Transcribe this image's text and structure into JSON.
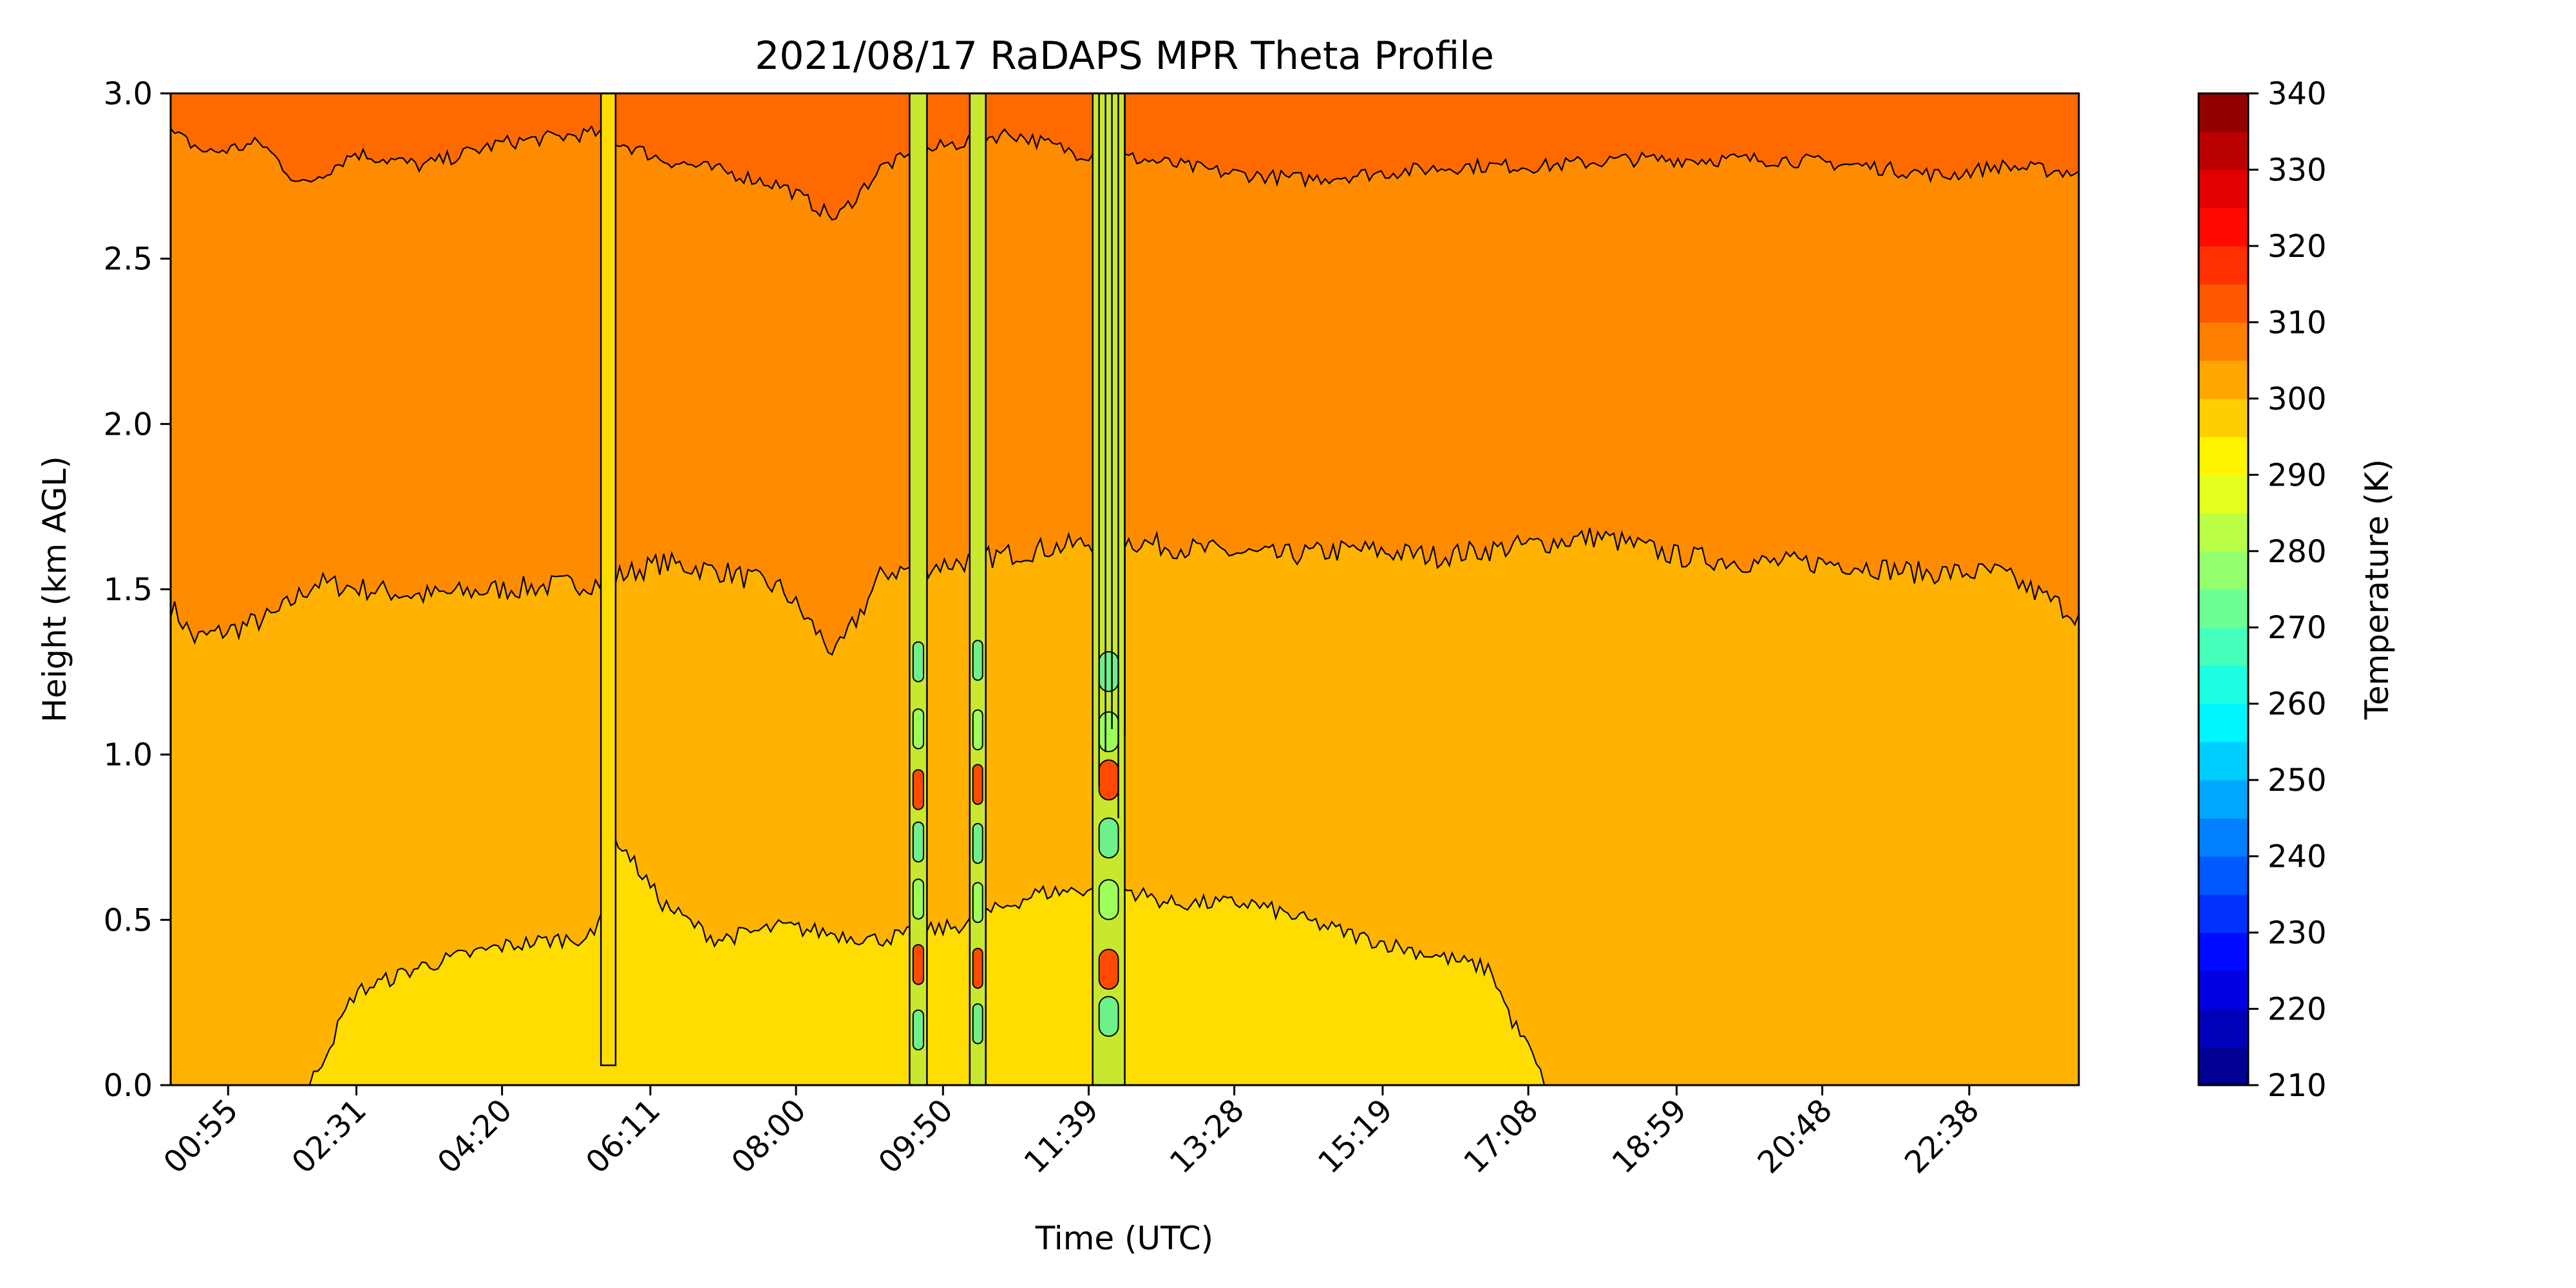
{
  "chart_data": {
    "type": "heatmap",
    "title": "2021/08/17 RaDAPS MPR Theta Profile",
    "xlabel": "Time (UTC)",
    "ylabel": "Height (km AGL)",
    "colorbar_label": "Temperature (K)",
    "colormap": "jet",
    "contour_lines": true,
    "x_range_minutes": [
      12,
      1440
    ],
    "x_ticks": [
      {
        "label": "00:55",
        "minutes": 55
      },
      {
        "label": "02:31",
        "minutes": 151
      },
      {
        "label": "04:20",
        "minutes": 260
      },
      {
        "label": "06:11",
        "minutes": 371
      },
      {
        "label": "08:00",
        "minutes": 480
      },
      {
        "label": "09:50",
        "minutes": 590
      },
      {
        "label": "11:39",
        "minutes": 699
      },
      {
        "label": "13:28",
        "minutes": 808
      },
      {
        "label": "15:19",
        "minutes": 919
      },
      {
        "label": "17:08",
        "minutes": 1028
      },
      {
        "label": "18:59",
        "minutes": 1139
      },
      {
        "label": "20:48",
        "minutes": 1248
      },
      {
        "label": "22:38",
        "minutes": 1358
      }
    ],
    "y_range": [
      0.0,
      3.0
    ],
    "y_ticks": [
      "0.0",
      "0.5",
      "1.0",
      "1.5",
      "2.0",
      "2.5",
      "3.0"
    ],
    "colorbar_range": [
      210,
      340
    ],
    "colorbar_levels": [
      210,
      215,
      220,
      225,
      230,
      235,
      240,
      245,
      250,
      255,
      260,
      265,
      270,
      275,
      280,
      285,
      290,
      295,
      300,
      305,
      310,
      315,
      320,
      325,
      330,
      335,
      340
    ],
    "colorbar_ticks": [
      "210",
      "220",
      "230",
      "240",
      "250",
      "260",
      "270",
      "280",
      "290",
      "300",
      "310",
      "320",
      "330",
      "340"
    ],
    "layers": [
      {
        "range_K": [
          295,
          300
        ],
        "color": "#ffdd00",
        "region": "surface layer, 01:50-17:30, top about 0.3-0.6 km"
      },
      {
        "range_K": [
          300,
          305
        ],
        "color": "#ffb300",
        "region": "0.3 km to about 1.5 km"
      },
      {
        "range_K": [
          305,
          310
        ],
        "color": "#ff8c00",
        "region": "1.5 km to about 2.8 km"
      },
      {
        "range_K": [
          310,
          315
        ],
        "color": "#ff6a00",
        "region": "above about 2.8 km"
      }
    ],
    "boundaries": {
      "b295_300": {
        "start_minutes": 116,
        "end_minutes": 1053,
        "points": [
          [
            116,
            0.0
          ],
          [
            150,
            0.28
          ],
          [
            200,
            0.36
          ],
          [
            260,
            0.42
          ],
          [
            300,
            0.44
          ],
          [
            330,
            0.45
          ],
          [
            345,
            0.75
          ],
          [
            380,
            0.55
          ],
          [
            420,
            0.44
          ],
          [
            470,
            0.48
          ],
          [
            540,
            0.44
          ],
          [
            600,
            0.48
          ],
          [
            660,
            0.58
          ],
          [
            720,
            0.6
          ],
          [
            760,
            0.55
          ],
          [
            820,
            0.55
          ],
          [
            860,
            0.5
          ],
          [
            900,
            0.45
          ],
          [
            950,
            0.4
          ],
          [
            1000,
            0.35
          ],
          [
            1015,
            0.2
          ],
          [
            1030,
            0.1
          ],
          [
            1040,
            0.0
          ]
        ]
      },
      "b300_305": [
        [
          12,
          1.45
        ],
        [
          30,
          1.35
        ],
        [
          60,
          1.38
        ],
        [
          90,
          1.42
        ],
        [
          120,
          1.52
        ],
        [
          160,
          1.5
        ],
        [
          200,
          1.48
        ],
        [
          260,
          1.5
        ],
        [
          330,
          1.52
        ],
        [
          380,
          1.58
        ],
        [
          430,
          1.55
        ],
        [
          470,
          1.5
        ],
        [
          510,
          1.3
        ],
        [
          545,
          1.55
        ],
        [
          600,
          1.58
        ],
        [
          660,
          1.62
        ],
        [
          720,
          1.65
        ],
        [
          780,
          1.62
        ],
        [
          840,
          1.6
        ],
        [
          900,
          1.62
        ],
        [
          960,
          1.6
        ],
        [
          1020,
          1.63
        ],
        [
          1080,
          1.66
        ],
        [
          1140,
          1.6
        ],
        [
          1200,
          1.58
        ],
        [
          1260,
          1.58
        ],
        [
          1320,
          1.55
        ],
        [
          1380,
          1.55
        ],
        [
          1440,
          1.42
        ]
      ],
      "b305_310": [
        [
          12,
          2.88
        ],
        [
          40,
          2.82
        ],
        [
          80,
          2.85
        ],
        [
          110,
          2.72
        ],
        [
          150,
          2.82
        ],
        [
          200,
          2.78
        ],
        [
          260,
          2.85
        ],
        [
          330,
          2.88
        ],
        [
          380,
          2.8
        ],
        [
          430,
          2.76
        ],
        [
          470,
          2.72
        ],
        [
          510,
          2.62
        ],
        [
          545,
          2.78
        ],
        [
          590,
          2.84
        ],
        [
          640,
          2.88
        ],
        [
          690,
          2.82
        ],
        [
          740,
          2.8
        ],
        [
          800,
          2.76
        ],
        [
          860,
          2.74
        ],
        [
          920,
          2.76
        ],
        [
          980,
          2.78
        ],
        [
          1040,
          2.78
        ],
        [
          1100,
          2.8
        ],
        [
          1160,
          2.8
        ],
        [
          1220,
          2.8
        ],
        [
          1280,
          2.78
        ],
        [
          1340,
          2.75
        ],
        [
          1380,
          2.78
        ],
        [
          1440,
          2.76
        ]
      ]
    },
    "disturbances": [
      {
        "start_minutes": 334,
        "end_minutes": 345,
        "y_from": 0.06,
        "y_to": 3.0,
        "note": "narrow vertical artifact"
      },
      {
        "start_minutes": 565,
        "end_minutes": 578,
        "y_from": 0.0,
        "y_to": 3.0,
        "note": "green and red contour spikes"
      },
      {
        "start_minutes": 610,
        "end_minutes": 622,
        "y_from": 0.0,
        "y_to": 3.0,
        "note": "green and red contour spikes"
      },
      {
        "start_minutes": 702,
        "end_minutes": 726,
        "y_from": 0.0,
        "y_to": 3.0,
        "note": "dense contour cluster"
      }
    ]
  }
}
